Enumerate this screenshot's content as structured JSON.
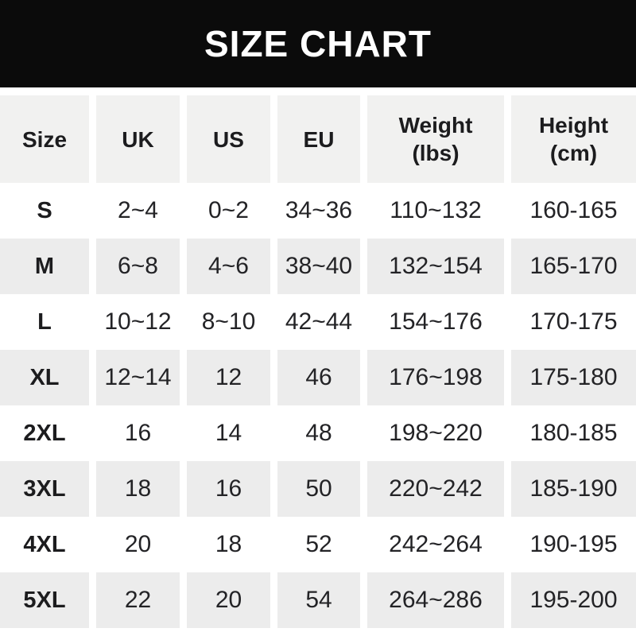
{
  "banner": {
    "title": "SIZE CHART"
  },
  "header": {
    "labels": [
      "Size",
      "UK",
      "US",
      "EU",
      "Weight\n(lbs)",
      "Height\n(cm)"
    ]
  },
  "colors": {
    "banner_bg": "#0b0b0b",
    "banner_text": "#ffffff",
    "header_bg": "#f1f1f0",
    "row_alt_bg": "#ececec",
    "row_bg": "#ffffff",
    "text": "#232326"
  },
  "chart_data": {
    "type": "table",
    "title": "SIZE CHART",
    "columns": [
      "Size",
      "UK",
      "US",
      "EU",
      "Weight (lbs)",
      "Height (cm)"
    ],
    "rows": [
      [
        "S",
        "2~4",
        "0~2",
        "34~36",
        "110~132",
        "160-165"
      ],
      [
        "M",
        "6~8",
        "4~6",
        "38~40",
        "132~154",
        "165-170"
      ],
      [
        "L",
        "10~12",
        "8~10",
        "42~44",
        "154~176",
        "170-175"
      ],
      [
        "XL",
        "12~14",
        "12",
        "46",
        "176~198",
        "175-180"
      ],
      [
        "2XL",
        "16",
        "14",
        "48",
        "198~220",
        "180-185"
      ],
      [
        "3XL",
        "18",
        "16",
        "50",
        "220~242",
        "185-190"
      ],
      [
        "4XL",
        "20",
        "18",
        "52",
        "242~264",
        "190-195"
      ],
      [
        "5XL",
        "22",
        "20",
        "54",
        "264~286",
        "195-200"
      ]
    ],
    "layout": {
      "alternating_row_shading": true,
      "grid_lines": false
    }
  }
}
